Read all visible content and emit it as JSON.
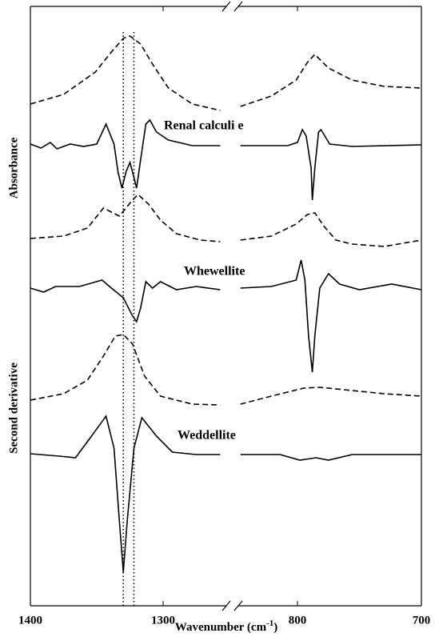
{
  "chart_data": {
    "type": "line",
    "xlabel": {
      "text": "Wavenumber (cm",
      "sup": "-1",
      "end": ")"
    },
    "ylabels": [
      "Absorbance",
      "Second derivative"
    ],
    "annotations": [
      "Renal calculi e",
      "Whewellite",
      "Weddellite"
    ],
    "vlines": [
      1330,
      1322
    ],
    "panels": [
      {
        "xlim": [
          1400,
          1250
        ],
        "xticks": [
          1400,
          1300
        ]
      },
      {
        "xlim": [
          850,
          700
        ],
        "xticks": [
          800,
          700
        ]
      }
    ],
    "ylim": [
      0,
      749
    ],
    "series": [
      {
        "color": "#000000",
        "style": "dashed",
        "x": [
          1400,
          1375,
          1351,
          1339,
          1330,
          1325,
          1317,
          1308,
          1296,
          1278,
          1257,
          846,
          821,
          801,
          792,
          786,
          775,
          756,
          730,
          700
        ],
        "values": [
          627,
          639,
          667,
          692,
          709,
          712,
          702,
          677,
          647,
          627,
          619,
          624,
          637,
          657,
          679,
          689,
          672,
          657,
          649,
          647
        ]
      },
      {
        "color": "#000000",
        "style": "solid",
        "x": [
          1400,
          1392,
          1385,
          1380,
          1370,
          1360,
          1350,
          1343,
          1337,
          1334,
          1331,
          1328,
          1325,
          1323,
          1320,
          1317,
          1313,
          1310,
          1305,
          1296,
          1278,
          1257,
          846,
          808,
          800,
          796,
          793,
          789,
          788,
          786,
          783,
          781,
          774,
          756,
          700
        ],
        "values": [
          577,
          572,
          579,
          571,
          577,
          574,
          577,
          602,
          577,
          542,
          522,
          542,
          554,
          542,
          522,
          557,
          602,
          607,
          592,
          582,
          575,
          575,
          575,
          575,
          579,
          595,
          587,
          547,
          507,
          547,
          592,
          595,
          577,
          574,
          576
        ]
      },
      {
        "color": "#000000",
        "style": "dashed",
        "x": [
          1400,
          1375,
          1357,
          1345,
          1333,
          1323,
          1319,
          1311,
          1302,
          1290,
          1272,
          1257,
          846,
          821,
          801,
          792,
          786,
          779,
          769,
          756,
          730,
          700
        ],
        "values": [
          459,
          462,
          472,
          497,
          487,
          507,
          514,
          502,
          482,
          465,
          457,
          455,
          457,
          462,
          477,
          489,
          491,
          475,
          457,
          452,
          449,
          457
        ]
      },
      {
        "color": "#000000",
        "style": "solid",
        "x": [
          1400,
          1390,
          1381,
          1363,
          1346,
          1339,
          1330,
          1323,
          1320,
          1317,
          1313,
          1308,
          1302,
          1290,
          1275,
          1257,
          846,
          821,
          801,
          797,
          794,
          791,
          788,
          786,
          782,
          775,
          766,
          750,
          724,
          700
        ],
        "values": [
          397,
          392,
          399,
          399,
          407,
          397,
          385,
          362,
          355,
          372,
          405,
          397,
          405,
          395,
          399,
          395,
          397,
          399,
          407,
          432,
          407,
          337,
          292,
          337,
          397,
          415,
          402,
          395,
          402,
          395
        ]
      },
      {
        "color": "#000000",
        "style": "dashed",
        "x": [
          1400,
          1375,
          1357,
          1345,
          1336,
          1330,
          1323,
          1314,
          1302,
          1278,
          1257,
          846,
          821,
          795,
          782,
          756,
          730,
          700
        ],
        "values": [
          257,
          265,
          282,
          312,
          337,
          339,
          327,
          287,
          262,
          252,
          251,
          252,
          262,
          272,
          273,
          269,
          265,
          262
        ]
      },
      {
        "color": "#000000",
        "style": "solid",
        "x": [
          1400,
          1378,
          1366,
          1354,
          1343,
          1337,
          1333,
          1330,
          1327,
          1322,
          1316,
          1305,
          1293,
          1275,
          1257,
          846,
          814,
          798,
          785,
          775,
          756,
          700
        ],
        "values": [
          190,
          187,
          185,
          212,
          237,
          197,
          107,
          42,
          107,
          197,
          235,
          212,
          192,
          189,
          189,
          189,
          189,
          182,
          185,
          182,
          189,
          189
        ]
      }
    ]
  }
}
